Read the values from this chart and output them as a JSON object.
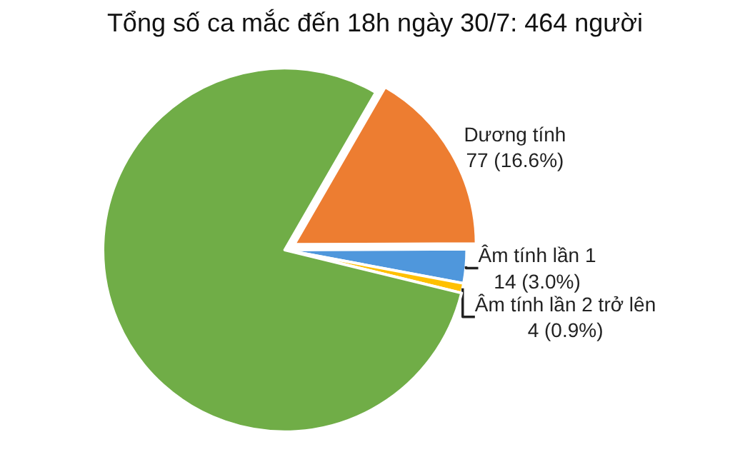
{
  "chart_data": {
    "type": "pie",
    "title": "Tổng số ca mắc đến 18h ngày 30/7: 464 người",
    "categories": [
      "Dương tính",
      "Âm tính lần 1",
      "Âm tính lần 2 trở lên",
      null
    ],
    "values": [
      77,
      14,
      4,
      369
    ],
    "value_labels": [
      "77 (16.6%)",
      "14 (3.0%)",
      "4 (0.9%)",
      null
    ],
    "colors": [
      "#ed7d31",
      "#4f97dc",
      "#ffc000",
      "#70ad47"
    ]
  }
}
